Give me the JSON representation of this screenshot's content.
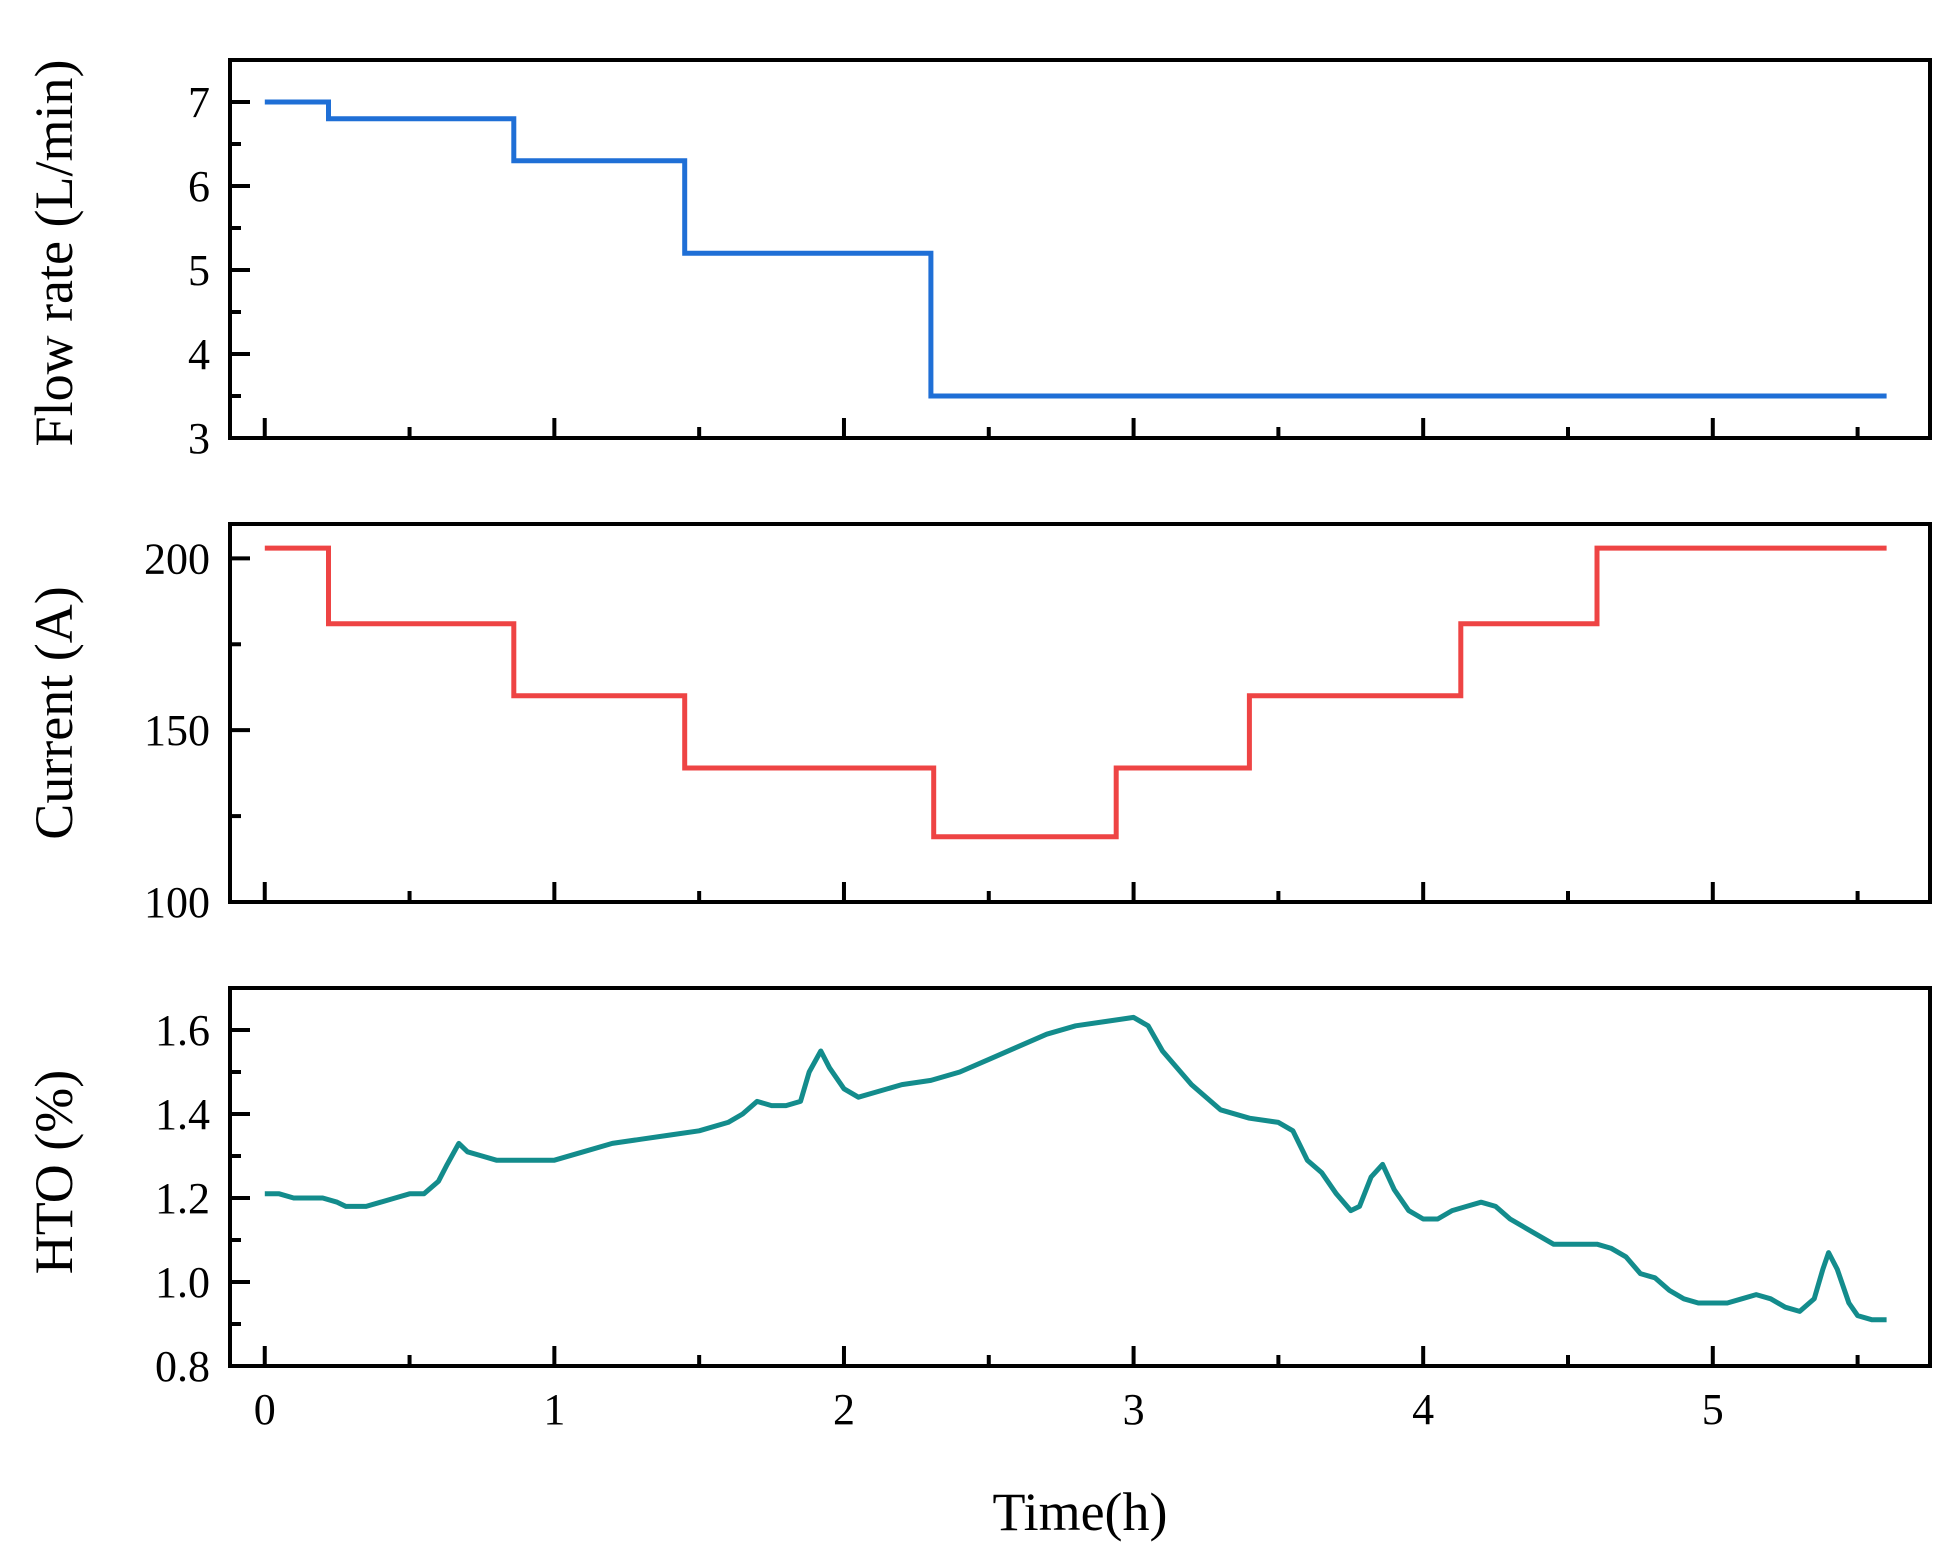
{
  "chart_data": [
    {
      "type": "line",
      "step": true,
      "ylabel": "Flow rate (L/min)",
      "xlabel": "",
      "xlim": [
        -0.12,
        5.75
      ],
      "ylim": [
        3,
        7.5
      ],
      "xticks": [
        0,
        1,
        2,
        3,
        4,
        5
      ],
      "yticks": [
        3,
        4,
        5,
        6,
        7
      ],
      "ytick_labels": [
        "3",
        "4",
        "5",
        "6",
        "7"
      ],
      "series": [
        {
          "name": "Flow rate",
          "color": "#1f6fd6",
          "x": [
            0,
            0.22,
            0.22,
            0.86,
            0.86,
            1.45,
            1.45,
            2.3,
            2.3,
            5.6
          ],
          "y": [
            7.0,
            7.0,
            6.8,
            6.8,
            6.3,
            6.3,
            5.2,
            5.2,
            3.5,
            3.5
          ]
        }
      ]
    },
    {
      "type": "line",
      "step": true,
      "ylabel": "Current (A)",
      "xlabel": "",
      "xlim": [
        -0.12,
        5.75
      ],
      "ylim": [
        100,
        210
      ],
      "xticks": [
        0,
        1,
        2,
        3,
        4,
        5
      ],
      "yticks": [
        100,
        150,
        200
      ],
      "ytick_labels": [
        "100",
        "150",
        "200"
      ],
      "series": [
        {
          "name": "Current",
          "color": "#ee4444",
          "x": [
            0,
            0.22,
            0.22,
            0.86,
            0.86,
            1.45,
            1.45,
            2.31,
            2.31,
            2.94,
            2.94,
            3.4,
            3.4,
            4.13,
            4.13,
            4.6,
            4.6,
            5.6
          ],
          "y": [
            203,
            203,
            181,
            181,
            160,
            160,
            139,
            139,
            119,
            119,
            139,
            139,
            160,
            160,
            181,
            181,
            203,
            203
          ]
        }
      ]
    },
    {
      "type": "line",
      "ylabel": "HTO (%)",
      "xlabel": "Time(h)",
      "xlim": [
        -0.12,
        5.75
      ],
      "ylim": [
        0.8,
        1.7
      ],
      "xticks": [
        0,
        1,
        2,
        3,
        4,
        5
      ],
      "xtick_labels": [
        "0",
        "1",
        "2",
        "3",
        "4",
        "5"
      ],
      "yticks": [
        0.8,
        1.0,
        1.2,
        1.4,
        1.6
      ],
      "ytick_labels": [
        "0.8",
        "1.0",
        "1.2",
        "1.4",
        "1.6"
      ],
      "series": [
        {
          "name": "HTO",
          "color": "#138c8c",
          "x": [
            0,
            0.05,
            0.1,
            0.2,
            0.25,
            0.28,
            0.35,
            0.4,
            0.45,
            0.5,
            0.55,
            0.6,
            0.63,
            0.67,
            0.7,
            0.75,
            0.8,
            0.9,
            1.0,
            1.1,
            1.2,
            1.3,
            1.4,
            1.5,
            1.6,
            1.65,
            1.7,
            1.75,
            1.8,
            1.85,
            1.88,
            1.92,
            1.95,
            2.0,
            2.05,
            2.1,
            2.2,
            2.3,
            2.4,
            2.5,
            2.6,
            2.7,
            2.8,
            2.9,
            3.0,
            3.05,
            3.1,
            3.2,
            3.3,
            3.4,
            3.5,
            3.55,
            3.6,
            3.65,
            3.7,
            3.75,
            3.78,
            3.82,
            3.86,
            3.9,
            3.95,
            4.0,
            4.05,
            4.1,
            4.15,
            4.2,
            4.25,
            4.3,
            4.35,
            4.4,
            4.45,
            4.5,
            4.55,
            4.6,
            4.65,
            4.7,
            4.75,
            4.8,
            4.85,
            4.9,
            4.95,
            5.0,
            5.05,
            5.1,
            5.15,
            5.2,
            5.25,
            5.3,
            5.35,
            5.38,
            5.4,
            5.43,
            5.47,
            5.5,
            5.55,
            5.6
          ],
          "y": [
            1.21,
            1.21,
            1.2,
            1.2,
            1.19,
            1.18,
            1.18,
            1.19,
            1.2,
            1.21,
            1.21,
            1.24,
            1.28,
            1.33,
            1.31,
            1.3,
            1.29,
            1.29,
            1.29,
            1.31,
            1.33,
            1.34,
            1.35,
            1.36,
            1.38,
            1.4,
            1.43,
            1.42,
            1.42,
            1.43,
            1.5,
            1.55,
            1.51,
            1.46,
            1.44,
            1.45,
            1.47,
            1.48,
            1.5,
            1.53,
            1.56,
            1.59,
            1.61,
            1.62,
            1.63,
            1.61,
            1.55,
            1.47,
            1.41,
            1.39,
            1.38,
            1.36,
            1.29,
            1.26,
            1.21,
            1.17,
            1.18,
            1.25,
            1.28,
            1.22,
            1.17,
            1.15,
            1.15,
            1.17,
            1.18,
            1.19,
            1.18,
            1.15,
            1.13,
            1.11,
            1.09,
            1.09,
            1.09,
            1.09,
            1.08,
            1.06,
            1.02,
            1.01,
            0.98,
            0.96,
            0.95,
            0.95,
            0.95,
            0.96,
            0.97,
            0.96,
            0.94,
            0.93,
            0.96,
            1.03,
            1.07,
            1.03,
            0.95,
            0.92,
            0.91,
            0.91
          ]
        }
      ]
    }
  ]
}
